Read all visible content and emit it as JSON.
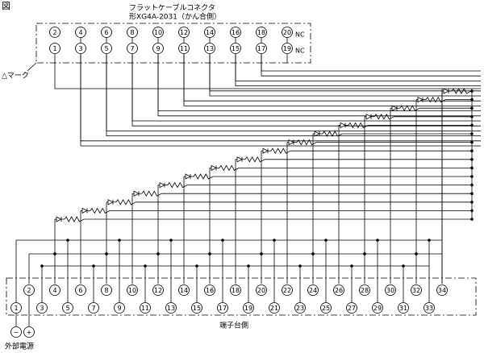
{
  "figure_label": "図",
  "connector": {
    "title": "フラットケーブルコネクタ",
    "model": "形XG4A-2031（かん合側）",
    "top_pins": [
      "2",
      "4",
      "6",
      "8",
      "10",
      "12",
      "14",
      "16",
      "18",
      "20"
    ],
    "bottom_pins": [
      "1",
      "3",
      "5",
      "7",
      "9",
      "11",
      "13",
      "15",
      "17",
      "19"
    ],
    "nc_labels": [
      "NC",
      "NC"
    ],
    "mark_label": "△マーク"
  },
  "terminal_block": {
    "top": [
      "2",
      "4",
      "6",
      "8",
      "10",
      "12",
      "14",
      "16",
      "18",
      "20",
      "22",
      "24",
      "26",
      "28",
      "30",
      "32",
      "34"
    ],
    "bottom": [
      "1",
      "3",
      "5",
      "7",
      "9",
      "11",
      "13",
      "15",
      "17",
      "19",
      "21",
      "23",
      "25",
      "27",
      "29",
      "31",
      "33"
    ],
    "label": "端子台側"
  },
  "power": {
    "minus": "−",
    "plus": "+",
    "label": "外部電源"
  }
}
